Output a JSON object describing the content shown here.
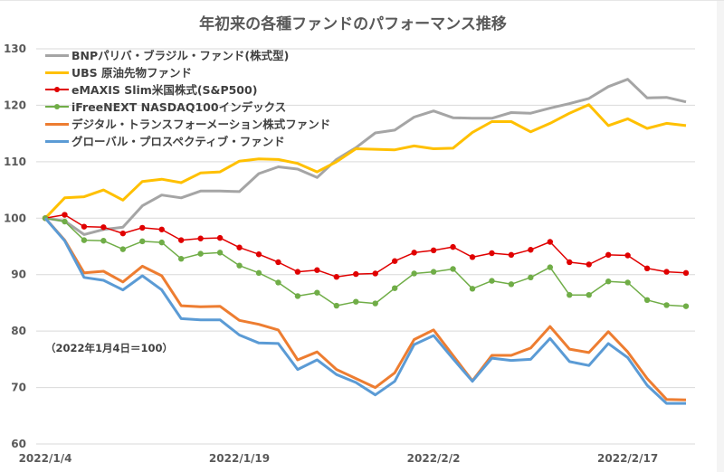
{
  "chart_data": {
    "type": "line",
    "title": "年初来の各種ファンドのパフォーマンス推移",
    "xlabel": "",
    "ylabel": "",
    "ylim": [
      60,
      130
    ],
    "yticks": [
      60,
      70,
      80,
      90,
      100,
      110,
      120,
      130
    ],
    "ytick_labels": [
      "60",
      "70",
      "80",
      "90",
      "100",
      "110",
      "120",
      "130"
    ],
    "x_tick_labels": [
      {
        "index": 0,
        "label": "2022/1/4"
      },
      {
        "index": 10,
        "label": "2022/1/19"
      },
      {
        "index": 20,
        "label": "2022/2/2"
      },
      {
        "index": 30,
        "label": "2022/2/17"
      }
    ],
    "n_points": 34,
    "grid": "horizontal",
    "legend_position": "top-left",
    "annotation": "（2022年1月4日＝100）",
    "series": [
      {
        "name": "BNPパリバ・ブラジル・ファンド(株式型)",
        "color": "#a5a5a5",
        "markers": false,
        "values": [
          100,
          99.5,
          97.1,
          98.0,
          98.4,
          102.2,
          104.1,
          103.6,
          104.8,
          104.8,
          104.7,
          107.9,
          109.1,
          108.7,
          107.2,
          110.4,
          112.5,
          115.1,
          115.6,
          117.9,
          119.0,
          117.8,
          117.7,
          117.7,
          118.7,
          118.6,
          119.5,
          120.3,
          121.2,
          123.3,
          124.6,
          121.3,
          121.4,
          120.6
        ]
      },
      {
        "name": "UBS 原油先物ファンド",
        "color": "#ffc000",
        "markers": false,
        "values": [
          100,
          103.6,
          103.8,
          105.0,
          103.2,
          106.5,
          106.9,
          106.3,
          108.0,
          108.2,
          110.1,
          110.5,
          110.4,
          109.7,
          108.2,
          110.0,
          112.3,
          112.2,
          112.1,
          112.8,
          112.3,
          112.4,
          115.2,
          117.1,
          117.1,
          115.3,
          116.8,
          118.6,
          120.1,
          116.4,
          117.6,
          115.9,
          116.8,
          116.4
        ]
      },
      {
        "name": "eMAXIS Slim米国株式(S&P500)",
        "color": "#e00000",
        "markers": true,
        "values": [
          100,
          100.6,
          98.5,
          98.4,
          97.3,
          98.3,
          98.0,
          96.1,
          96.4,
          96.5,
          94.8,
          93.6,
          92.2,
          90.5,
          90.8,
          89.6,
          90.1,
          90.2,
          92.4,
          93.9,
          94.3,
          94.9,
          93.1,
          93.8,
          93.5,
          94.4,
          95.8,
          92.2,
          91.8,
          93.5,
          93.4,
          91.1,
          90.5,
          90.3
        ]
      },
      {
        "name": "iFreeNEXT NASDAQ100インデックス",
        "color": "#70ad47",
        "markers": true,
        "values": [
          100,
          99.4,
          96.1,
          96.0,
          94.5,
          95.9,
          95.7,
          92.8,
          93.7,
          93.9,
          91.6,
          90.3,
          88.6,
          86.2,
          86.8,
          84.5,
          85.2,
          84.9,
          87.6,
          90.2,
          90.5,
          91.0,
          87.5,
          88.9,
          88.3,
          89.5,
          91.3,
          86.4,
          86.4,
          88.8,
          88.6,
          85.5,
          84.6,
          84.4
        ]
      },
      {
        "name": "デジタル・トランスフォーメーション株式ファンド",
        "color": "#ed7d31",
        "markers": false,
        "values": [
          100,
          96.1,
          90.3,
          90.6,
          88.7,
          91.5,
          89.8,
          84.5,
          84.3,
          84.4,
          81.9,
          81.2,
          80.2,
          74.9,
          76.3,
          73.2,
          71.6,
          70.0,
          72.6,
          78.5,
          80.2,
          75.7,
          71.2,
          75.7,
          75.7,
          77.0,
          80.8,
          76.8,
          76.2,
          79.9,
          76.3,
          71.6,
          67.9,
          67.8
        ]
      },
      {
        "name": "グローバル・プロスペクティブ・ファンド",
        "color": "#5b9bd5",
        "markers": false,
        "values": [
          100,
          96.0,
          89.5,
          89.0,
          87.3,
          89.8,
          87.3,
          82.2,
          82.0,
          82.0,
          79.3,
          77.9,
          77.8,
          73.2,
          74.9,
          72.3,
          70.9,
          68.7,
          71.1,
          77.6,
          79.2,
          75.1,
          71.1,
          75.2,
          74.8,
          75.0,
          78.7,
          74.6,
          73.9,
          77.8,
          75.3,
          70.4,
          67.2,
          67.2
        ]
      }
    ]
  }
}
